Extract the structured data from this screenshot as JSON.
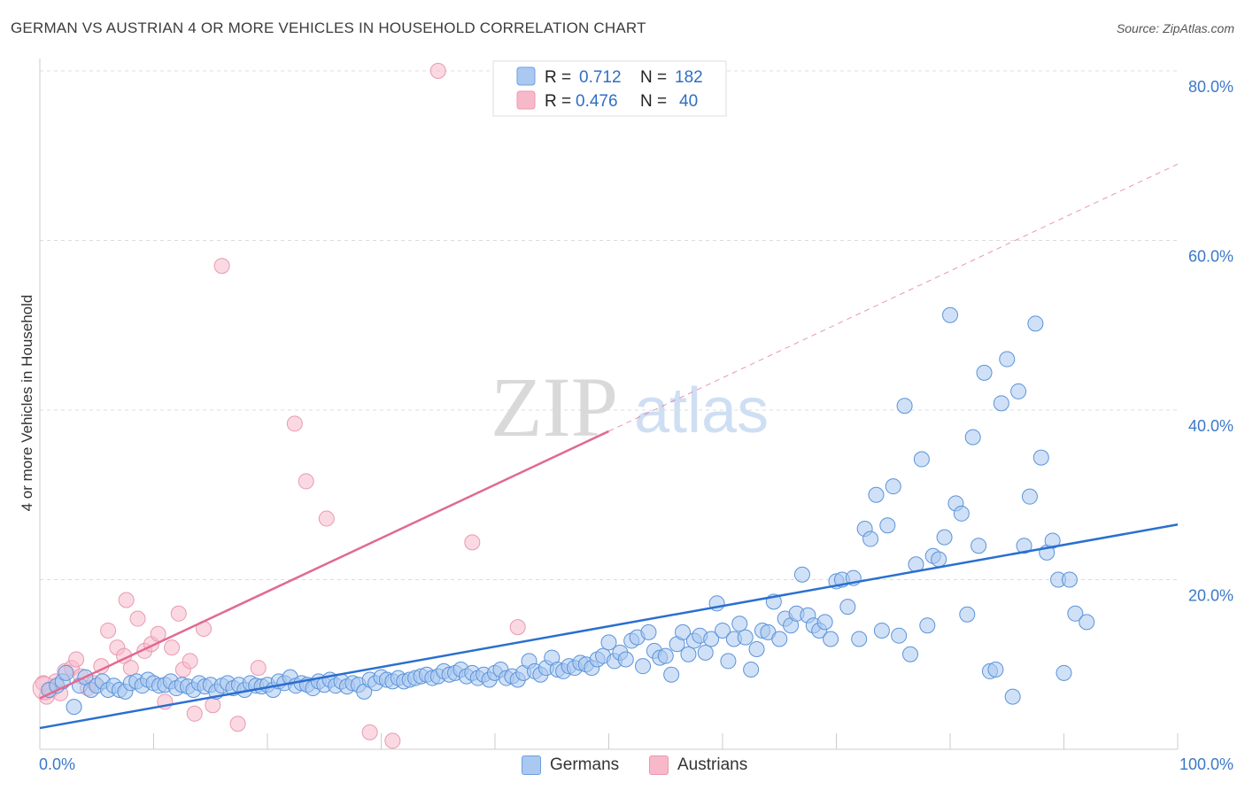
{
  "title": "GERMAN VS AUSTRIAN 4 OR MORE VEHICLES IN HOUSEHOLD CORRELATION CHART",
  "source": "Source: ZipAtlas.com",
  "watermark": {
    "zip": "ZIP",
    "atlas": "atlas"
  },
  "stats_legend": [
    {
      "r_label": "R =",
      "r_value": "0.712",
      "n_label": "N =",
      "n_value": "182",
      "color": "#aac8f0"
    },
    {
      "r_label": "R =",
      "r_value": "0.476",
      "n_label": "N =",
      "n_value": "40",
      "color": "#f7b9ca"
    }
  ],
  "bottom_legend": [
    {
      "label": "Germans",
      "color": "#aac8f0"
    },
    {
      "label": "Austrians",
      "color": "#f7b9ca"
    }
  ],
  "chart_data": {
    "type": "scatter",
    "title": "GERMAN VS AUSTRIAN 4 OR MORE VEHICLES IN HOUSEHOLD CORRELATION CHART",
    "xlabel": "",
    "ylabel": "4 or more Vehicles in Household",
    "xlim": [
      0,
      100
    ],
    "ylim": [
      0,
      80
    ],
    "x_tick_labels": [
      "0.0%",
      "100.0%"
    ],
    "y_ticks": [
      20,
      40,
      60,
      80
    ],
    "y_tick_labels": [
      "20.0%",
      "40.0%",
      "60.0%",
      "80.0%"
    ],
    "grid": true,
    "legend_position": "top-center",
    "series": [
      {
        "name": "Germans",
        "color": "#5b93d9",
        "fill": "#aac8f0",
        "trend": {
          "x0": 0,
          "y0": 2.5,
          "x1": 100,
          "y1": 26.5,
          "color": "#2a6fd0"
        },
        "points": [
          [
            0.8,
            7.0
          ],
          [
            1.5,
            7.5
          ],
          [
            2.0,
            8.0
          ],
          [
            2.3,
            9.0
          ],
          [
            3.0,
            5.0
          ],
          [
            3.5,
            7.5
          ],
          [
            4.0,
            8.5
          ],
          [
            4.5,
            7.0
          ],
          [
            5.0,
            7.5
          ],
          [
            5.5,
            8.0
          ],
          [
            6.0,
            7.0
          ],
          [
            6.5,
            7.5
          ],
          [
            7.0,
            7.0
          ],
          [
            7.5,
            6.8
          ],
          [
            8.0,
            7.8
          ],
          [
            8.5,
            8.0
          ],
          [
            9.0,
            7.5
          ],
          [
            9.5,
            8.2
          ],
          [
            10.0,
            7.8
          ],
          [
            10.5,
            7.5
          ],
          [
            11.0,
            7.6
          ],
          [
            11.5,
            8.0
          ],
          [
            12.0,
            7.2
          ],
          [
            12.5,
            7.6
          ],
          [
            13.0,
            7.4
          ],
          [
            13.5,
            7.0
          ],
          [
            14.0,
            7.8
          ],
          [
            14.5,
            7.4
          ],
          [
            15.0,
            7.6
          ],
          [
            15.5,
            6.8
          ],
          [
            16.0,
            7.5
          ],
          [
            16.5,
            7.8
          ],
          [
            17.0,
            7.2
          ],
          [
            17.5,
            7.6
          ],
          [
            18.0,
            7.0
          ],
          [
            18.5,
            7.8
          ],
          [
            19.0,
            7.5
          ],
          [
            19.5,
            7.4
          ],
          [
            20.0,
            7.6
          ],
          [
            20.5,
            7.0
          ],
          [
            21.0,
            8.0
          ],
          [
            21.5,
            7.8
          ],
          [
            22.0,
            8.5
          ],
          [
            22.5,
            7.5
          ],
          [
            23.0,
            7.8
          ],
          [
            23.5,
            7.6
          ],
          [
            24.0,
            7.2
          ],
          [
            24.5,
            8.0
          ],
          [
            25.0,
            7.6
          ],
          [
            25.5,
            8.2
          ],
          [
            26.0,
            7.5
          ],
          [
            26.5,
            8.0
          ],
          [
            27.0,
            7.4
          ],
          [
            27.5,
            7.8
          ],
          [
            28.0,
            7.6
          ],
          [
            28.5,
            6.8
          ],
          [
            29.0,
            8.2
          ],
          [
            29.5,
            7.8
          ],
          [
            30.0,
            8.5
          ],
          [
            30.5,
            8.2
          ],
          [
            31.0,
            8.0
          ],
          [
            31.5,
            8.4
          ],
          [
            32.0,
            8.0
          ],
          [
            32.5,
            8.2
          ],
          [
            33.0,
            8.4
          ],
          [
            33.5,
            8.6
          ],
          [
            34.0,
            8.8
          ],
          [
            34.5,
            8.4
          ],
          [
            35.0,
            8.6
          ],
          [
            35.5,
            9.2
          ],
          [
            36.0,
            8.8
          ],
          [
            36.5,
            9.0
          ],
          [
            37.0,
            9.4
          ],
          [
            37.5,
            8.6
          ],
          [
            38.0,
            9.0
          ],
          [
            38.5,
            8.4
          ],
          [
            39.0,
            8.8
          ],
          [
            39.5,
            8.2
          ],
          [
            40.0,
            9.0
          ],
          [
            40.5,
            9.4
          ],
          [
            41.0,
            8.4
          ],
          [
            41.5,
            8.6
          ],
          [
            42.0,
            8.2
          ],
          [
            42.5,
            9.0
          ],
          [
            43.0,
            10.4
          ],
          [
            43.5,
            9.2
          ],
          [
            44.0,
            8.8
          ],
          [
            44.5,
            9.6
          ],
          [
            45.0,
            10.8
          ],
          [
            45.5,
            9.4
          ],
          [
            46.0,
            9.2
          ],
          [
            46.5,
            9.8
          ],
          [
            47.0,
            9.6
          ],
          [
            47.5,
            10.2
          ],
          [
            48.0,
            10.0
          ],
          [
            48.5,
            9.6
          ],
          [
            49.0,
            10.6
          ],
          [
            49.5,
            11.0
          ],
          [
            50.0,
            12.6
          ],
          [
            50.5,
            10.4
          ],
          [
            51.0,
            11.4
          ],
          [
            51.5,
            10.6
          ],
          [
            52.0,
            12.8
          ],
          [
            52.5,
            13.2
          ],
          [
            53.0,
            9.8
          ],
          [
            53.5,
            13.8
          ],
          [
            54.0,
            11.6
          ],
          [
            54.5,
            10.8
          ],
          [
            55.0,
            11.0
          ],
          [
            55.5,
            8.8
          ],
          [
            56.0,
            12.4
          ],
          [
            56.5,
            13.8
          ],
          [
            57.0,
            11.2
          ],
          [
            57.5,
            12.8
          ],
          [
            58.0,
            13.4
          ],
          [
            58.5,
            11.4
          ],
          [
            59.0,
            13.0
          ],
          [
            59.5,
            17.2
          ],
          [
            60.0,
            14.0
          ],
          [
            60.5,
            10.4
          ],
          [
            61.0,
            13.0
          ],
          [
            61.5,
            14.8
          ],
          [
            62.0,
            13.2
          ],
          [
            62.5,
            9.4
          ],
          [
            63.0,
            11.8
          ],
          [
            63.5,
            14.0
          ],
          [
            64.0,
            13.8
          ],
          [
            64.5,
            17.4
          ],
          [
            65.0,
            13.0
          ],
          [
            65.5,
            15.4
          ],
          [
            66.0,
            14.6
          ],
          [
            66.5,
            16.0
          ],
          [
            67.0,
            20.6
          ],
          [
            67.5,
            15.8
          ],
          [
            68.0,
            14.6
          ],
          [
            68.5,
            14.0
          ],
          [
            69.0,
            15.0
          ],
          [
            69.5,
            13.0
          ],
          [
            70.0,
            19.8
          ],
          [
            70.5,
            20.0
          ],
          [
            71.0,
            16.8
          ],
          [
            71.5,
            20.2
          ],
          [
            72.0,
            13.0
          ],
          [
            72.5,
            26.0
          ],
          [
            73.0,
            24.8
          ],
          [
            73.5,
            30.0
          ],
          [
            74.0,
            14.0
          ],
          [
            74.5,
            26.4
          ],
          [
            75.0,
            31.0
          ],
          [
            75.5,
            13.4
          ],
          [
            76.0,
            40.5
          ],
          [
            76.5,
            11.2
          ],
          [
            77.0,
            21.8
          ],
          [
            77.5,
            34.2
          ],
          [
            78.0,
            14.6
          ],
          [
            78.5,
            22.8
          ],
          [
            79.0,
            22.4
          ],
          [
            79.5,
            25.0
          ],
          [
            80.0,
            51.2
          ],
          [
            80.5,
            29.0
          ],
          [
            81.0,
            27.8
          ],
          [
            81.5,
            15.9
          ],
          [
            82.0,
            36.8
          ],
          [
            82.5,
            24.0
          ],
          [
            83.0,
            44.4
          ],
          [
            83.5,
            9.2
          ],
          [
            84.0,
            9.4
          ],
          [
            84.5,
            40.8
          ],
          [
            85.0,
            46.0
          ],
          [
            85.5,
            6.2
          ],
          [
            86.0,
            42.2
          ],
          [
            86.5,
            24.0
          ],
          [
            87.0,
            29.8
          ],
          [
            87.5,
            50.2
          ],
          [
            88.0,
            34.4
          ],
          [
            88.5,
            23.2
          ],
          [
            89.0,
            24.6
          ],
          [
            89.5,
            20.0
          ],
          [
            90.0,
            9.0
          ],
          [
            90.5,
            20.0
          ],
          [
            91.0,
            16.0
          ],
          [
            92.0,
            15.0
          ]
        ]
      },
      {
        "name": "Austrians",
        "color": "#e89ab2",
        "fill": "#f7b9ca",
        "trend": {
          "x0": 0,
          "y0": 6.0,
          "x1": 50,
          "y1": 37.5,
          "dash_to_x": 100,
          "dash_to_y": 69.0,
          "color": "#e06a92"
        },
        "points": [
          [
            0.3,
            7.8
          ],
          [
            0.6,
            6.2
          ],
          [
            1.0,
            7.0
          ],
          [
            1.4,
            8.0
          ],
          [
            1.8,
            6.6
          ],
          [
            2.2,
            9.2
          ],
          [
            2.8,
            9.6
          ],
          [
            3.2,
            10.6
          ],
          [
            3.6,
            8.6
          ],
          [
            4.2,
            7.2
          ],
          [
            4.8,
            7.8
          ],
          [
            5.4,
            9.8
          ],
          [
            6.0,
            14.0
          ],
          [
            6.8,
            12.0
          ],
          [
            7.4,
            11.0
          ],
          [
            8.0,
            9.6
          ],
          [
            8.6,
            15.4
          ],
          [
            9.2,
            11.6
          ],
          [
            9.8,
            12.4
          ],
          [
            10.4,
            13.6
          ],
          [
            11.0,
            5.6
          ],
          [
            11.6,
            12.0
          ],
          [
            12.2,
            16.0
          ],
          [
            12.6,
            9.4
          ],
          [
            13.2,
            10.4
          ],
          [
            13.6,
            4.2
          ],
          [
            14.4,
            14.2
          ],
          [
            15.2,
            5.2
          ],
          [
            16.0,
            57.0
          ],
          [
            17.4,
            3.0
          ],
          [
            19.2,
            9.6
          ],
          [
            22.4,
            38.4
          ],
          [
            23.4,
            31.6
          ],
          [
            25.2,
            27.2
          ],
          [
            29.0,
            2.0
          ],
          [
            31.0,
            1.0
          ],
          [
            35.0,
            80.0
          ],
          [
            38.0,
            24.4
          ],
          [
            42.0,
            14.4
          ],
          [
            7.6,
            17.6
          ]
        ]
      }
    ]
  }
}
